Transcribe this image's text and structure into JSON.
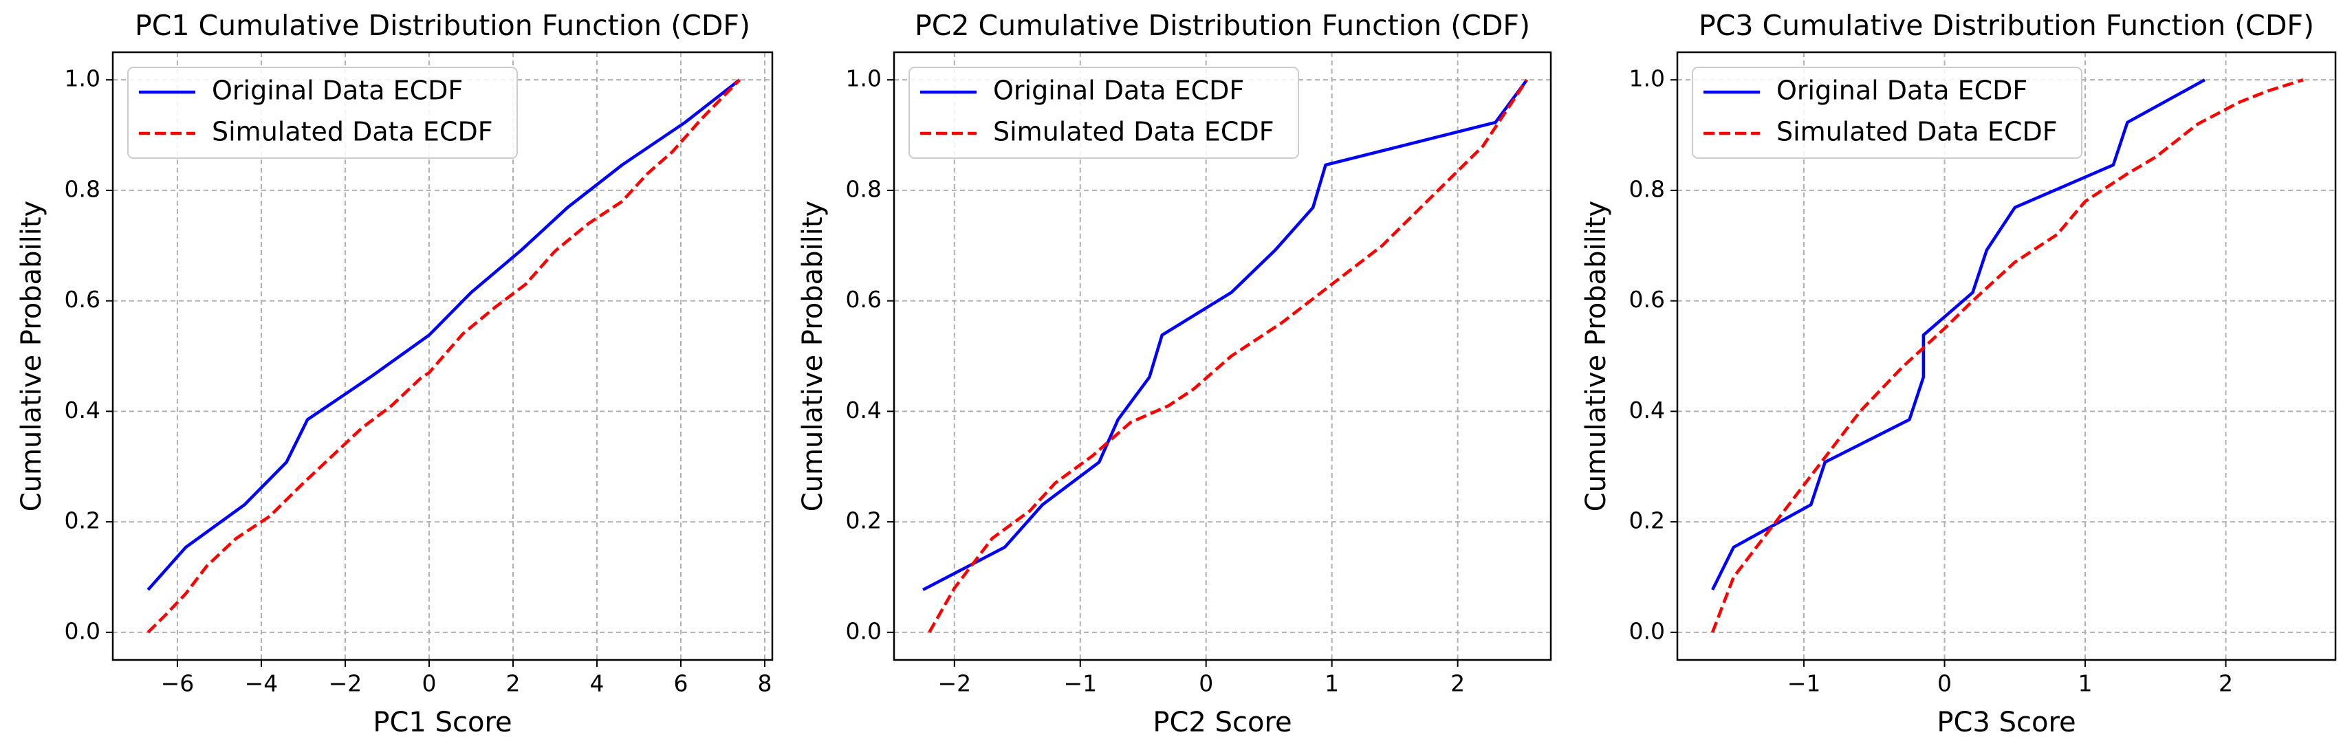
{
  "chart_data": [
    {
      "type": "line",
      "title": "PC1 Cumulative Distribution Function (CDF)",
      "xlabel": "PC1 Score",
      "ylabel": "Cumulative Probability",
      "xlim": [
        -7.54,
        8.18
      ],
      "ylim": [
        -0.05,
        1.05
      ],
      "xticks": [
        {
          "value": -6,
          "label": "−6"
        },
        {
          "value": -4,
          "label": "−4"
        },
        {
          "value": -2,
          "label": "−2"
        },
        0,
        2,
        4,
        6,
        8
      ],
      "yticks": [
        {
          "value": 0,
          "label": "0.0"
        },
        0.2,
        0.4,
        0.6,
        0.8,
        {
          "value": 1,
          "label": "1.0"
        }
      ],
      "grid": true,
      "legend": "upper left",
      "series": [
        {
          "name": "Original Data ECDF",
          "color": "#0000ff",
          "linestyle": "solid",
          "x": [
            -6.7,
            -5.8,
            -4.4,
            -3.4,
            -2.9,
            -1.4,
            0.0,
            1.0,
            2.2,
            3.3,
            4.6,
            6.1,
            7.4
          ],
          "values": [
            0.077,
            0.154,
            0.231,
            0.308,
            0.385,
            0.462,
            0.538,
            0.615,
            0.692,
            0.769,
            0.846,
            0.923,
            1.0
          ]
        },
        {
          "name": "Simulated Data ECDF",
          "color": "#ff0000",
          "linestyle": "dashed",
          "x": [
            -6.7,
            -6.3,
            -5.8,
            -5.3,
            -4.6,
            -3.8,
            -3.0,
            -2.3,
            -1.6,
            -0.9,
            -0.2,
            0.0,
            0.8,
            1.6,
            2.3,
            3.0,
            3.8,
            4.6,
            5.2,
            5.8,
            6.5,
            7.4
          ],
          "values": [
            0.0,
            0.03,
            0.07,
            0.12,
            0.17,
            0.21,
            0.27,
            0.32,
            0.37,
            0.41,
            0.46,
            0.47,
            0.54,
            0.59,
            0.63,
            0.69,
            0.74,
            0.78,
            0.83,
            0.87,
            0.93,
            1.0
          ]
        }
      ]
    },
    {
      "type": "line",
      "title": "PC2 Cumulative Distribution Function (CDF)",
      "xlabel": "PC2 Score",
      "ylabel": "Cumulative Probability",
      "xlim": [
        -2.48,
        2.74
      ],
      "ylim": [
        -0.05,
        1.05
      ],
      "xticks": [
        {
          "value": -2,
          "label": "−2"
        },
        {
          "value": -1,
          "label": "−1"
        },
        0,
        1,
        2
      ],
      "yticks": [
        {
          "value": 0,
          "label": "0.0"
        },
        0.2,
        0.4,
        0.6,
        0.8,
        {
          "value": 1,
          "label": "1.0"
        }
      ],
      "grid": true,
      "legend": "upper left",
      "series": [
        {
          "name": "Original Data ECDF",
          "color": "#0000ff",
          "linestyle": "solid",
          "x": [
            -2.25,
            -1.6,
            -1.3,
            -0.85,
            -0.7,
            -0.45,
            -0.35,
            0.2,
            0.55,
            0.85,
            0.95,
            2.3,
            2.55
          ],
          "values": [
            0.077,
            0.154,
            0.231,
            0.308,
            0.385,
            0.462,
            0.538,
            0.615,
            0.692,
            0.769,
            0.846,
            0.923,
            1.0
          ]
        },
        {
          "name": "Simulated Data ECDF",
          "color": "#ff0000",
          "linestyle": "dashed",
          "x": [
            -2.2,
            -2.0,
            -1.7,
            -1.4,
            -1.2,
            -0.9,
            -0.6,
            -0.3,
            -0.1,
            0.2,
            0.6,
            1.0,
            1.4,
            1.8,
            2.2,
            2.55
          ],
          "values": [
            0.0,
            0.08,
            0.17,
            0.22,
            0.27,
            0.32,
            0.38,
            0.41,
            0.44,
            0.5,
            0.56,
            0.63,
            0.7,
            0.79,
            0.88,
            1.0
          ]
        }
      ]
    },
    {
      "type": "line",
      "title": "PC3 Cumulative Distribution Function (CDF)",
      "xlabel": "PC3 Score",
      "ylabel": "Cumulative Probability",
      "xlim": [
        -1.9,
        2.78
      ],
      "ylim": [
        -0.05,
        1.05
      ],
      "xticks": [
        {
          "value": -1,
          "label": "−1"
        },
        0,
        1,
        2
      ],
      "yticks": [
        {
          "value": 0,
          "label": "0.0"
        },
        0.2,
        0.4,
        0.6,
        0.8,
        {
          "value": 1,
          "label": "1.0"
        }
      ],
      "grid": true,
      "legend": "upper left",
      "series": [
        {
          "name": "Original Data ECDF",
          "color": "#0000ff",
          "linestyle": "solid",
          "x": [
            -1.65,
            -1.5,
            -0.95,
            -0.85,
            -0.25,
            -0.15,
            -0.15,
            0.2,
            0.3,
            0.5,
            1.2,
            1.3,
            1.85
          ],
          "values": [
            0.077,
            0.154,
            0.231,
            0.308,
            0.385,
            0.462,
            0.538,
            0.615,
            0.692,
            0.769,
            0.846,
            0.923,
            1.0
          ]
        },
        {
          "name": "Simulated Data ECDF",
          "color": "#ff0000",
          "linestyle": "dashed",
          "x": [
            -1.65,
            -1.5,
            -1.2,
            -0.9,
            -0.6,
            -0.3,
            0.0,
            0.2,
            0.5,
            0.8,
            1.0,
            1.3,
            1.5,
            1.8,
            2.1,
            2.3,
            2.55
          ],
          "values": [
            0.0,
            0.1,
            0.2,
            0.3,
            0.4,
            0.48,
            0.55,
            0.6,
            0.67,
            0.72,
            0.78,
            0.83,
            0.86,
            0.92,
            0.96,
            0.98,
            1.0
          ]
        }
      ]
    }
  ]
}
